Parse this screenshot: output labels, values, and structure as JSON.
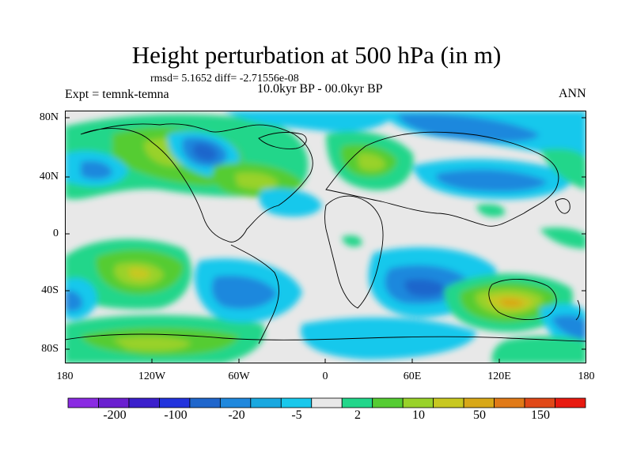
{
  "title": "Height perturbation at 500 hPa (in m)",
  "stats": "rmsd= 5.1652 diff= -2.71556e-08",
  "expt": "Expt = temnk-temna",
  "period": "10.0kyr BP - 00.0kyr BP",
  "season": "ANN",
  "lat_labels": [
    "80N",
    "40N",
    "0",
    "40S",
    "80S"
  ],
  "lon_labels": [
    "180",
    "120W",
    "60W",
    "0",
    "60E",
    "120E",
    "180"
  ],
  "colorbar": {
    "colors": [
      "#8a2be2",
      "#6a1fd0",
      "#3b1fcc",
      "#2233dd",
      "#1f66cc",
      "#1f88dd",
      "#19a8e0",
      "#19c8ec",
      "#e8e8e8",
      "#22d68a",
      "#55cc33",
      "#99d22a",
      "#c8c820",
      "#d8a818",
      "#e07a18",
      "#e04818",
      "#e81a10"
    ],
    "labels": [
      "-200",
      "-100",
      "-20",
      "-5",
      "2",
      "10",
      "50",
      "150"
    ]
  }
}
